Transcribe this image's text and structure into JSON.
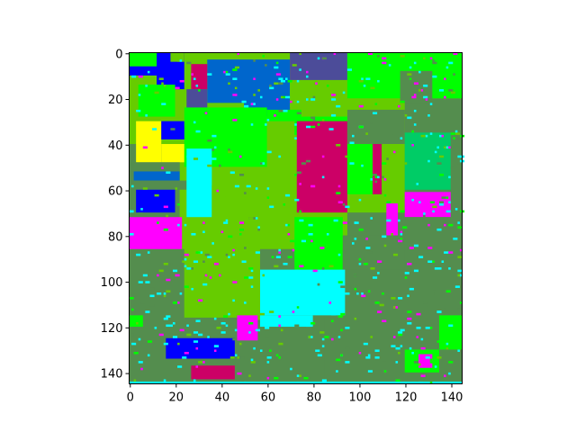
{
  "chart_data": {
    "type": "heatmap",
    "title": "",
    "xlabel": "",
    "ylabel": "",
    "xlim": [
      0,
      145
    ],
    "ylim": [
      145,
      0
    ],
    "x_ticks": [
      "0",
      "20",
      "40",
      "60",
      "80",
      "100",
      "120",
      "140"
    ],
    "y_ticks": [
      "0",
      "20",
      "40",
      "60",
      "80",
      "100",
      "120",
      "140"
    ],
    "x_tick_values": [
      0,
      20,
      40,
      60,
      80,
      100,
      120,
      140
    ],
    "y_tick_values": [
      0,
      20,
      40,
      60,
      80,
      100,
      120,
      140
    ],
    "grid": false,
    "legend": "none",
    "colors": {
      "background_class": "#548d4e",
      "green": "#00ff00",
      "yellow_green": "#66cc00",
      "blue": "#0000ff",
      "steel_blue": "#0066cc",
      "slate": "#4c4c99",
      "cyan": "#00ffff",
      "magenta": "#ff00ff",
      "crimson": "#cc0066",
      "yellow": "#ffff00",
      "teal_green": "#00cc66",
      "sea_green": "#33cc66"
    },
    "regions": [
      {
        "class": "yellow_green",
        "x": [
          0,
          145
        ],
        "y": [
          0,
          145
        ]
      },
      {
        "class": "background_class",
        "x": [
          0,
          145
        ],
        "y": [
          86,
          145
        ]
      },
      {
        "class": "background_class",
        "x": [
          0,
          22
        ],
        "y": [
          40,
          86
        ]
      },
      {
        "class": "background_class",
        "x": [
          120,
          145
        ],
        "y": [
          20,
          145
        ]
      },
      {
        "class": "background_class",
        "x": [
          85,
          145
        ],
        "y": [
          95,
          145
        ]
      },
      {
        "class": "background_class",
        "x": [
          95,
          145
        ],
        "y": [
          70,
          110
        ]
      },
      {
        "class": "green",
        "x": [
          0,
          18
        ],
        "y": [
          0,
          6
        ]
      },
      {
        "class": "blue",
        "x": [
          0,
          18
        ],
        "y": [
          6,
          10
        ]
      },
      {
        "class": "blue",
        "x": [
          12,
          24
        ],
        "y": [
          0,
          16
        ]
      },
      {
        "class": "yellow_green",
        "x": [
          18,
          24
        ],
        "y": [
          0,
          4
        ]
      },
      {
        "class": "steel_blue",
        "x": [
          34,
          70
        ],
        "y": [
          3,
          28
        ]
      },
      {
        "class": "yellow_green",
        "x": [
          34,
          50
        ],
        "y": [
          22,
          30
        ]
      },
      {
        "class": "crimson",
        "x": [
          27,
          34
        ],
        "y": [
          5,
          16
        ]
      },
      {
        "class": "slate",
        "x": [
          25,
          34
        ],
        "y": [
          16,
          26
        ]
      },
      {
        "class": "slate",
        "x": [
          70,
          95
        ],
        "y": [
          0,
          12
        ]
      },
      {
        "class": "yellow_green",
        "x": [
          70,
          95
        ],
        "y": [
          12,
          24
        ]
      },
      {
        "class": "green",
        "x": [
          95,
          145
        ],
        "y": [
          0,
          20
        ]
      },
      {
        "class": "background_class",
        "x": [
          118,
          132
        ],
        "y": [
          8,
          22
        ]
      },
      {
        "class": "green",
        "x": [
          4,
          20
        ],
        "y": [
          14,
          28
        ]
      },
      {
        "class": "blue",
        "x": [
          24,
          35
        ],
        "y": [
          32,
          38
        ]
      },
      {
        "class": "green",
        "x": [
          24,
          60
        ],
        "y": [
          24,
          50
        ]
      },
      {
        "class": "green",
        "x": [
          60,
          75
        ],
        "y": [
          25,
          30
        ]
      },
      {
        "class": "yellow",
        "x": [
          3,
          14
        ],
        "y": [
          30,
          48
        ]
      },
      {
        "class": "yellow",
        "x": [
          14,
          24
        ],
        "y": [
          40,
          48
        ]
      },
      {
        "class": "blue",
        "x": [
          14,
          24
        ],
        "y": [
          30,
          38
        ]
      },
      {
        "class": "background_class",
        "x": [
          0,
          22
        ],
        "y": [
          48,
          52
        ]
      },
      {
        "class": "steel_blue",
        "x": [
          2,
          22
        ],
        "y": [
          52,
          56
        ]
      },
      {
        "class": "background_class",
        "x": [
          0,
          25
        ],
        "y": [
          56,
          60
        ]
      },
      {
        "class": "blue",
        "x": [
          3,
          20
        ],
        "y": [
          60,
          70
        ]
      },
      {
        "class": "cyan",
        "x": [
          25,
          36
        ],
        "y": [
          42,
          72
        ]
      },
      {
        "class": "yellow_green",
        "x": [
          36,
          48
        ],
        "y": [
          58,
          72
        ]
      },
      {
        "class": "green",
        "x": [
          72,
          95
        ],
        "y": [
          28,
          35
        ]
      },
      {
        "class": "crimson",
        "x": [
          73,
          95
        ],
        "y": [
          30,
          70
        ]
      },
      {
        "class": "background_class",
        "x": [
          95,
          120
        ],
        "y": [
          25,
          40
        ]
      },
      {
        "class": "green",
        "x": [
          95,
          110
        ],
        "y": [
          40,
          62
        ]
      },
      {
        "class": "crimson",
        "x": [
          106,
          110
        ],
        "y": [
          40,
          62
        ]
      },
      {
        "class": "yellow_green",
        "x": [
          110,
          120
        ],
        "y": [
          40,
          60
        ]
      },
      {
        "class": "teal_green",
        "x": [
          120,
          140
        ],
        "y": [
          35,
          60
        ]
      },
      {
        "class": "magenta",
        "x": [
          120,
          140
        ],
        "y": [
          61,
          72
        ]
      },
      {
        "class": "background_class",
        "x": [
          120,
          140
        ],
        "y": [
          72,
          80
        ]
      },
      {
        "class": "magenta",
        "x": [
          112,
          117
        ],
        "y": [
          66,
          80
        ]
      },
      {
        "class": "magenta",
        "x": [
          0,
          23
        ],
        "y": [
          72,
          86
        ]
      },
      {
        "class": "green",
        "x": [
          72,
          93
        ],
        "y": [
          72,
          95
        ]
      },
      {
        "class": "background_class",
        "x": [
          93,
          120
        ],
        "y": [
          80,
          95
        ]
      },
      {
        "class": "cyan",
        "x": [
          57,
          94
        ],
        "y": [
          95,
          115
        ]
      },
      {
        "class": "cyan",
        "x": [
          57,
          80
        ],
        "y": [
          115,
          120
        ]
      },
      {
        "class": "yellow_green",
        "x": [
          24,
          57
        ],
        "y": [
          75,
          117
        ]
      },
      {
        "class": "background_class",
        "x": [
          24,
          48
        ],
        "y": [
          116,
          122
        ]
      },
      {
        "class": "magenta",
        "x": [
          47,
          56
        ],
        "y": [
          115,
          126
        ]
      },
      {
        "class": "blue",
        "x": [
          16,
          46
        ],
        "y": [
          125,
          134
        ]
      },
      {
        "class": "background_class",
        "x": [
          16,
          46
        ],
        "y": [
          134,
          137
        ]
      },
      {
        "class": "crimson",
        "x": [
          27,
          46
        ],
        "y": [
          137,
          143
        ]
      },
      {
        "class": "green",
        "x": [
          0,
          6
        ],
        "y": [
          115,
          120
        ]
      },
      {
        "class": "green",
        "x": [
          135,
          145
        ],
        "y": [
          115,
          130
        ]
      },
      {
        "class": "green",
        "x": [
          120,
          135
        ],
        "y": [
          130,
          140
        ]
      },
      {
        "class": "magenta",
        "x": [
          126,
          132
        ],
        "y": [
          132,
          138
        ]
      },
      {
        "class": "cyan",
        "x": [
          0,
          145
        ],
        "y": [
          144,
          145
        ]
      }
    ]
  }
}
